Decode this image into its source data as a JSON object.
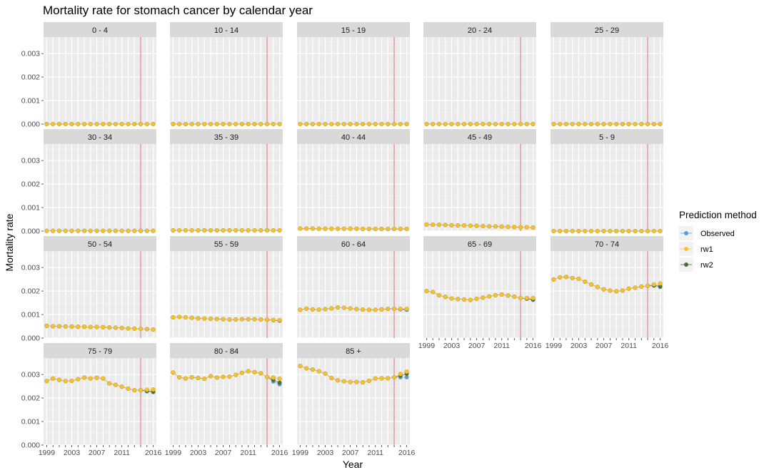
{
  "chart_data": {
    "type": "scatter",
    "title": "Mortality rate for stomach cancer by calendar year",
    "xlabel": "Year",
    "ylabel": "Mortality rate",
    "ylim": [
      0,
      0.0037
    ],
    "xlim": [
      1998.5,
      2016.5
    ],
    "y_ticks": [
      0,
      0.001,
      0.002,
      0.003
    ],
    "y_tick_labels": [
      "0.000",
      "0.001",
      "0.002",
      "0.003"
    ],
    "x_ticks": [
      1999,
      2003,
      2007,
      2011,
      2016
    ],
    "x_tick_labels": [
      "1999",
      "2003",
      "2007",
      "2011",
      "2016"
    ],
    "vline_x": 2014,
    "vline_color": "#e07b7b",
    "grid": true,
    "legend": {
      "title": "Prediction method",
      "position": "right",
      "entries": [
        {
          "name": "Observed",
          "color": "#5b9bd5"
        },
        {
          "name": "rw1",
          "color": "#f5c12e"
        },
        {
          "name": "rw2",
          "color": "#4f6b3c"
        }
      ]
    },
    "x": [
      1999,
      2000,
      2001,
      2002,
      2003,
      2004,
      2005,
      2006,
      2007,
      2008,
      2009,
      2010,
      2011,
      2012,
      2013,
      2014,
      2015,
      2016
    ],
    "panels": [
      {
        "label": "0 - 4",
        "observed": [
          0,
          0,
          0,
          0,
          0,
          0,
          0,
          0,
          0,
          0,
          0,
          0,
          0,
          0,
          0,
          0,
          0,
          0
        ],
        "rw1": [
          0,
          0,
          0,
          0,
          0,
          0,
          0,
          0,
          0,
          0,
          0,
          0,
          0,
          0,
          0,
          0,
          0,
          0
        ],
        "rw2": [
          0,
          0,
          0,
          0,
          0,
          0,
          0,
          0,
          0,
          0,
          0,
          0,
          0,
          0,
          0,
          0,
          0,
          0
        ]
      },
      {
        "label": "10 - 14",
        "observed": [
          0,
          0,
          0,
          0,
          0,
          0,
          0,
          0,
          0,
          0,
          0,
          0,
          0,
          0,
          0,
          0,
          0,
          0
        ],
        "rw1": [
          0,
          0,
          0,
          0,
          0,
          0,
          0,
          0,
          0,
          0,
          0,
          0,
          0,
          0,
          0,
          0,
          0,
          0
        ],
        "rw2": [
          0,
          0,
          0,
          0,
          0,
          0,
          0,
          0,
          0,
          0,
          0,
          0,
          0,
          0,
          0,
          0,
          0,
          0
        ]
      },
      {
        "label": "15 - 19",
        "observed": [
          0,
          0,
          0,
          0,
          0,
          0,
          0,
          0,
          0,
          0,
          0,
          0,
          0,
          0,
          0,
          0,
          0,
          0
        ],
        "rw1": [
          0,
          0,
          0,
          0,
          0,
          0,
          0,
          0,
          0,
          0,
          0,
          0,
          0,
          0,
          0,
          0,
          0,
          0
        ],
        "rw2": [
          0,
          0,
          0,
          0,
          0,
          0,
          0,
          0,
          0,
          0,
          0,
          0,
          0,
          0,
          0,
          0,
          0,
          0
        ]
      },
      {
        "label": "20 - 24",
        "observed": [
          0,
          0,
          0,
          0,
          0,
          0,
          0,
          0,
          0,
          0,
          0,
          0,
          0,
          0,
          0,
          0,
          0,
          0
        ],
        "rw1": [
          0,
          0,
          0,
          0,
          0,
          0,
          0,
          0,
          0,
          0,
          0,
          0,
          0,
          0,
          0,
          0,
          0,
          0
        ],
        "rw2": [
          0,
          0,
          0,
          0,
          0,
          0,
          0,
          0,
          0,
          0,
          0,
          0,
          0,
          0,
          0,
          0,
          0,
          0
        ]
      },
      {
        "label": "25 - 29",
        "observed": [
          0,
          0,
          0,
          0,
          0,
          0,
          0,
          0,
          0,
          0,
          0,
          0,
          0,
          0,
          0,
          0,
          0,
          0
        ],
        "rw1": [
          0,
          0,
          0,
          0,
          0,
          0,
          0,
          0,
          0,
          0,
          0,
          0,
          0,
          0,
          0,
          0,
          0,
          0
        ],
        "rw2": [
          0,
          0,
          0,
          0,
          0,
          0,
          0,
          0,
          0,
          0,
          0,
          0,
          0,
          0,
          0,
          0,
          0,
          0
        ]
      },
      {
        "label": "30 - 34",
        "observed": [
          1e-05,
          1e-05,
          1e-05,
          1e-05,
          1e-05,
          1e-05,
          1e-05,
          1e-05,
          1e-05,
          1e-05,
          1e-05,
          1e-05,
          1e-05,
          1e-05,
          1e-05,
          1e-05,
          1e-05,
          1e-05
        ],
        "rw1": [
          1e-05,
          1e-05,
          1e-05,
          1e-05,
          1e-05,
          1e-05,
          1e-05,
          1e-05,
          1e-05,
          1e-05,
          1e-05,
          1e-05,
          1e-05,
          1e-05,
          1e-05,
          1e-05,
          1e-05,
          1e-05
        ],
        "rw2": [
          1e-05,
          1e-05,
          1e-05,
          1e-05,
          1e-05,
          1e-05,
          1e-05,
          1e-05,
          1e-05,
          1e-05,
          1e-05,
          1e-05,
          1e-05,
          1e-05,
          1e-05,
          1e-05,
          1e-05,
          1e-05
        ]
      },
      {
        "label": "35 - 39",
        "observed": [
          3e-05,
          3e-05,
          3e-05,
          3e-05,
          3e-05,
          3e-05,
          3e-05,
          3e-05,
          3e-05,
          3e-05,
          3e-05,
          3e-05,
          3e-05,
          3e-05,
          3e-05,
          3e-05,
          3e-05,
          3e-05
        ],
        "rw1": [
          3e-05,
          3e-05,
          3e-05,
          3e-05,
          3e-05,
          3e-05,
          3e-05,
          3e-05,
          3e-05,
          3e-05,
          3e-05,
          3e-05,
          3e-05,
          3e-05,
          3e-05,
          3e-05,
          3e-05,
          3e-05
        ],
        "rw2": [
          3e-05,
          3e-05,
          3e-05,
          3e-05,
          3e-05,
          3e-05,
          3e-05,
          3e-05,
          3e-05,
          3e-05,
          3e-05,
          3e-05,
          3e-05,
          3e-05,
          3e-05,
          3e-05,
          3e-05,
          3e-05
        ]
      },
      {
        "label": "40 - 44",
        "observed": [
          0.00011,
          0.00011,
          0.00011,
          0.0001,
          0.0001,
          0.0001,
          0.0001,
          0.0001,
          0.0001,
          0.0001,
          9e-05,
          9e-05,
          9e-05,
          9e-05,
          9e-05,
          9e-05,
          9e-05,
          9e-05
        ],
        "rw1": [
          0.00011,
          0.00011,
          0.00011,
          0.0001,
          0.0001,
          0.0001,
          0.0001,
          0.0001,
          0.0001,
          0.0001,
          9e-05,
          9e-05,
          9e-05,
          9e-05,
          9e-05,
          9e-05,
          9e-05,
          9e-05
        ],
        "rw2": [
          0.00011,
          0.00011,
          0.00011,
          0.0001,
          0.0001,
          0.0001,
          0.0001,
          0.0001,
          0.0001,
          0.0001,
          9e-05,
          9e-05,
          9e-05,
          9e-05,
          9e-05,
          9e-05,
          9e-05,
          9e-05
        ]
      },
      {
        "label": "45 - 49",
        "observed": [
          0.00028,
          0.00027,
          0.00027,
          0.00026,
          0.00025,
          0.00024,
          0.00024,
          0.00023,
          0.00022,
          0.00021,
          0.0002,
          0.0002,
          0.00019,
          0.00018,
          0.00017,
          0.00016,
          0.00016,
          0.00015
        ],
        "rw1": [
          0.00028,
          0.00027,
          0.00027,
          0.00026,
          0.00025,
          0.00024,
          0.00024,
          0.00023,
          0.00022,
          0.00021,
          0.0002,
          0.0002,
          0.00019,
          0.00018,
          0.00017,
          0.00016,
          0.00016,
          0.00015
        ],
        "rw2": [
          0.00028,
          0.00027,
          0.00027,
          0.00026,
          0.00025,
          0.00024,
          0.00024,
          0.00023,
          0.00022,
          0.00021,
          0.0002,
          0.0002,
          0.00019,
          0.00018,
          0.00017,
          0.00016,
          0.00016,
          0.00015
        ]
      },
      {
        "label": "5 - 9",
        "observed": [
          0,
          0,
          0,
          0,
          0,
          0,
          0,
          0,
          0,
          0,
          0,
          0,
          0,
          0,
          0,
          0,
          0,
          0
        ],
        "rw1": [
          0,
          0,
          0,
          0,
          0,
          0,
          0,
          0,
          0,
          0,
          0,
          0,
          0,
          0,
          0,
          0,
          0,
          0
        ],
        "rw2": [
          0,
          0,
          0,
          0,
          0,
          0,
          0,
          0,
          0,
          0,
          0,
          0,
          0,
          0,
          0,
          0,
          0,
          0
        ]
      },
      {
        "label": "50 - 54",
        "observed": [
          0.00052,
          0.0005,
          0.0005,
          0.00049,
          0.00049,
          0.00048,
          0.00048,
          0.00047,
          0.00047,
          0.00046,
          0.00045,
          0.00044,
          0.00043,
          0.00041,
          0.0004,
          0.00039,
          0.00038,
          0.00036
        ],
        "rw1": [
          0.00052,
          0.0005,
          0.0005,
          0.00049,
          0.00049,
          0.00048,
          0.00048,
          0.00047,
          0.00047,
          0.00046,
          0.00045,
          0.00044,
          0.00043,
          0.00041,
          0.0004,
          0.00039,
          0.00038,
          0.00036
        ],
        "rw2": [
          0.00052,
          0.0005,
          0.0005,
          0.00049,
          0.00049,
          0.00048,
          0.00048,
          0.00047,
          0.00047,
          0.00046,
          0.00045,
          0.00044,
          0.00043,
          0.00041,
          0.0004,
          0.00039,
          0.00038,
          0.00036
        ]
      },
      {
        "label": "55 - 59",
        "observed": [
          0.00088,
          0.0009,
          0.00088,
          0.00086,
          0.00084,
          0.00083,
          0.00082,
          0.00081,
          0.0008,
          0.00079,
          0.00079,
          0.0008,
          0.0008,
          0.0008,
          0.00079,
          0.00078,
          0.00076,
          0.00074
        ],
        "rw1": [
          0.00088,
          0.0009,
          0.00088,
          0.00086,
          0.00084,
          0.00083,
          0.00082,
          0.00081,
          0.0008,
          0.00079,
          0.00079,
          0.0008,
          0.0008,
          0.0008,
          0.00079,
          0.00078,
          0.00077,
          0.00076
        ],
        "rw2": [
          0.00088,
          0.0009,
          0.00088,
          0.00086,
          0.00084,
          0.00083,
          0.00082,
          0.00081,
          0.0008,
          0.00079,
          0.00079,
          0.0008,
          0.0008,
          0.0008,
          0.00079,
          0.00078,
          0.00076,
          0.00074
        ]
      },
      {
        "label": "60 - 64",
        "observed": [
          0.0012,
          0.00125,
          0.00122,
          0.00121,
          0.00123,
          0.00126,
          0.0013,
          0.00129,
          0.00126,
          0.00123,
          0.00121,
          0.0012,
          0.0012,
          0.00122,
          0.00124,
          0.00124,
          0.00122,
          0.0012
        ],
        "rw1": [
          0.0012,
          0.00125,
          0.00122,
          0.00121,
          0.00123,
          0.00126,
          0.0013,
          0.00129,
          0.00126,
          0.00123,
          0.00121,
          0.0012,
          0.0012,
          0.00122,
          0.00124,
          0.00124,
          0.00124,
          0.00124
        ],
        "rw2": [
          0.0012,
          0.00125,
          0.00122,
          0.00121,
          0.00123,
          0.00126,
          0.0013,
          0.00129,
          0.00126,
          0.00123,
          0.00121,
          0.0012,
          0.0012,
          0.00122,
          0.00124,
          0.00124,
          0.00123,
          0.00122
        ]
      },
      {
        "label": "65 - 69",
        "observed": [
          0.002,
          0.00196,
          0.00182,
          0.00175,
          0.00168,
          0.00166,
          0.00164,
          0.00162,
          0.00167,
          0.00172,
          0.00177,
          0.00182,
          0.00185,
          0.00181,
          0.00176,
          0.0017,
          0.00167,
          0.00162
        ],
        "rw1": [
          0.002,
          0.00196,
          0.00182,
          0.00175,
          0.00168,
          0.00166,
          0.00164,
          0.00162,
          0.00167,
          0.00172,
          0.00177,
          0.00182,
          0.00185,
          0.00181,
          0.00176,
          0.0017,
          0.0017,
          0.0017
        ],
        "rw2": [
          0.002,
          0.00196,
          0.00182,
          0.00175,
          0.00168,
          0.00166,
          0.00164,
          0.00162,
          0.00167,
          0.00172,
          0.00177,
          0.00182,
          0.00185,
          0.00181,
          0.00176,
          0.0017,
          0.00167,
          0.00164
        ]
      },
      {
        "label": "70 - 74",
        "observed": [
          0.00249,
          0.00258,
          0.0026,
          0.00255,
          0.00252,
          0.0024,
          0.00228,
          0.00217,
          0.00207,
          0.00202,
          0.00199,
          0.00202,
          0.0021,
          0.00214,
          0.00219,
          0.00222,
          0.00224,
          0.00222
        ],
        "rw1": [
          0.00249,
          0.00258,
          0.0026,
          0.00255,
          0.00252,
          0.0024,
          0.00228,
          0.00217,
          0.00207,
          0.00202,
          0.00199,
          0.00202,
          0.0021,
          0.00214,
          0.00219,
          0.00222,
          0.00228,
          0.00232
        ],
        "rw2": [
          0.00249,
          0.00258,
          0.0026,
          0.00255,
          0.00252,
          0.0024,
          0.00228,
          0.00217,
          0.00207,
          0.00202,
          0.00199,
          0.00202,
          0.0021,
          0.00214,
          0.00219,
          0.00222,
          0.00223,
          0.00218
        ]
      },
      {
        "label": "75 - 79",
        "observed": [
          0.00272,
          0.00283,
          0.00277,
          0.00272,
          0.00273,
          0.0028,
          0.00287,
          0.00283,
          0.00286,
          0.00283,
          0.00262,
          0.00256,
          0.00248,
          0.0024,
          0.00233,
          0.00233,
          0.00228,
          0.00225
        ],
        "rw1": [
          0.00272,
          0.00283,
          0.00277,
          0.00272,
          0.00273,
          0.0028,
          0.00287,
          0.00283,
          0.00286,
          0.00283,
          0.00262,
          0.00256,
          0.00248,
          0.0024,
          0.00233,
          0.00233,
          0.00235,
          0.00236
        ],
        "rw2": [
          0.00272,
          0.00283,
          0.00277,
          0.00272,
          0.00273,
          0.0028,
          0.00287,
          0.00283,
          0.00286,
          0.00283,
          0.00262,
          0.00256,
          0.00248,
          0.0024,
          0.00233,
          0.00233,
          0.0023,
          0.00227
        ]
      },
      {
        "label": "80 - 84",
        "observed": [
          0.00308,
          0.00288,
          0.00283,
          0.00288,
          0.00285,
          0.00282,
          0.00293,
          0.00287,
          0.0029,
          0.00291,
          0.00298,
          0.00307,
          0.00314,
          0.0031,
          0.00305,
          0.0029,
          0.0027,
          0.00258
        ],
        "rw1": [
          0.00308,
          0.00288,
          0.00283,
          0.00288,
          0.00285,
          0.00282,
          0.00293,
          0.00287,
          0.0029,
          0.00291,
          0.00298,
          0.00307,
          0.00314,
          0.0031,
          0.00305,
          0.0029,
          0.00287,
          0.00282
        ],
        "rw2": [
          0.00308,
          0.00288,
          0.00283,
          0.00288,
          0.00285,
          0.00282,
          0.00293,
          0.00287,
          0.0029,
          0.00291,
          0.00298,
          0.00307,
          0.00314,
          0.0031,
          0.00305,
          0.0029,
          0.00277,
          0.00265
        ]
      },
      {
        "label": "85 +",
        "observed": [
          0.00336,
          0.00326,
          0.00321,
          0.00314,
          0.00304,
          0.00285,
          0.00275,
          0.00271,
          0.00268,
          0.00268,
          0.00267,
          0.00273,
          0.00283,
          0.00284,
          0.00284,
          0.00288,
          0.00288,
          0.00288
        ],
        "rw1": [
          0.00336,
          0.00326,
          0.00321,
          0.00314,
          0.00304,
          0.00285,
          0.00275,
          0.00271,
          0.00268,
          0.00268,
          0.00267,
          0.00273,
          0.00283,
          0.00284,
          0.00284,
          0.00288,
          0.00302,
          0.00312
        ],
        "rw2": [
          0.00336,
          0.00326,
          0.00321,
          0.00314,
          0.00304,
          0.00285,
          0.00275,
          0.00271,
          0.00268,
          0.00268,
          0.00267,
          0.00273,
          0.00283,
          0.00284,
          0.00284,
          0.00288,
          0.00295,
          0.00303
        ]
      }
    ]
  }
}
